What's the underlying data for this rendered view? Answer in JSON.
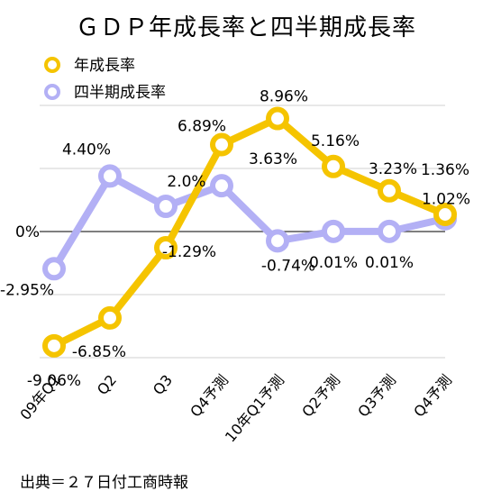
{
  "chart_data": {
    "type": "line",
    "title": "ＧＤＰ年成長率と四半期成長率",
    "categories": [
      "09年Q1",
      "Q2",
      "Q3",
      "Q4予測",
      "10年Q1予測",
      "Q2予測",
      "Q3予測",
      "Q4予測"
    ],
    "series": [
      {
        "name": "年成長率",
        "color": "#f5c400",
        "values": [
          -9.06,
          -6.85,
          -1.29,
          6.89,
          8.96,
          5.16,
          3.23,
          1.36
        ],
        "labels": [
          "-9.06%",
          "-6.85%",
          "-1.29%",
          "6.89%",
          "8.96%",
          "5.16%",
          "3.23%",
          "1.36%"
        ]
      },
      {
        "name": "四半期成長率",
        "color": "#b3b0f5",
        "values": [
          -2.95,
          4.4,
          2.0,
          3.63,
          -0.74,
          0.01,
          0.01,
          1.02
        ],
        "labels": [
          "-2.95%",
          "4.40%",
          "2.0%",
          "3.63%",
          "-0.74%",
          "0.01%",
          "0.01%",
          "1.02%"
        ]
      }
    ],
    "zero_label": "0%",
    "ylim": [
      -12,
      12
    ],
    "grid": true,
    "legend_position": "top-left"
  },
  "source_text": "出典＝２７日付工商時報"
}
